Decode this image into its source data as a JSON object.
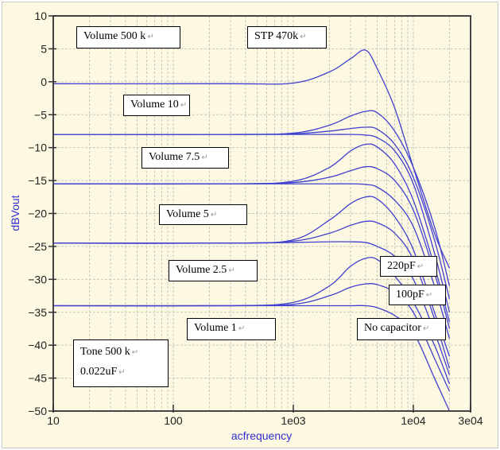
{
  "chart_data": {
    "type": "line",
    "title": "",
    "xlabel": "acfrequency",
    "ylabel": "dBVout",
    "xscale": "log",
    "xlim": [
      10,
      30000
    ],
    "ylim": [
      -50,
      10
    ],
    "grid": true,
    "xticks": [
      {
        "value": 10,
        "label": "10"
      },
      {
        "value": 100,
        "label": "100"
      },
      {
        "value": 1000,
        "label": "1e03"
      },
      {
        "value": 10000,
        "label": "1e04"
      },
      {
        "value": 30000,
        "label": "3e04"
      }
    ],
    "yticks": [
      10,
      5,
      0,
      -5,
      -10,
      -15,
      -20,
      -25,
      -30,
      -35,
      -40,
      -45,
      -50
    ],
    "x": [
      10,
      300,
      1000,
      2000,
      3000,
      4000,
      5000,
      7000,
      10000,
      15000,
      20000
    ],
    "series": [
      {
        "name": "Volume 500k STP 470k",
        "values": [
          -0.3,
          -0.3,
          -0.2,
          1.5,
          3.5,
          4.8,
          2,
          -4,
          -13,
          -23,
          -28.3
        ]
      },
      {
        "name": "Volume 10 220pF",
        "values": [
          -8,
          -8,
          -7.8,
          -6.6,
          -5.2,
          -4.5,
          -4.7,
          -7.5,
          -13,
          -22,
          -31
        ]
      },
      {
        "name": "Volume 10 100pF",
        "values": [
          -8,
          -8,
          -7.9,
          -7.5,
          -7.1,
          -6.9,
          -7.2,
          -9.5,
          -14.5,
          -24,
          -33
        ]
      },
      {
        "name": "Volume 10 No capacitor",
        "values": [
          -8,
          -8,
          -8,
          -8,
          -8,
          -8.1,
          -8.5,
          -10.5,
          -15.5,
          -26,
          -35
        ]
      },
      {
        "name": "Volume 7.5 220pF",
        "values": [
          -15.5,
          -15.5,
          -15.1,
          -13,
          -10.5,
          -9.5,
          -9.9,
          -12.5,
          -18,
          -28,
          -36.5
        ]
      },
      {
        "name": "Volume 7.5 100pF",
        "values": [
          -15.5,
          -15.5,
          -15.3,
          -14.5,
          -13.5,
          -12.9,
          -13.2,
          -15,
          -19.5,
          -29,
          -37.5
        ]
      },
      {
        "name": "Volume 7.5 No capacitor",
        "values": [
          -15.5,
          -15.5,
          -15.5,
          -15.5,
          -15.5,
          -15.6,
          -16,
          -18,
          -22,
          -31,
          -39
        ]
      },
      {
        "name": "Volume 5 220pF",
        "values": [
          -24.5,
          -24.5,
          -24,
          -21,
          -18.5,
          -17.5,
          -17.8,
          -20.5,
          -25.5,
          -35,
          -41.7
        ]
      },
      {
        "name": "Volume 5 100pF",
        "values": [
          -24.5,
          -24.5,
          -24.2,
          -23,
          -21.8,
          -21.2,
          -21.4,
          -23,
          -27,
          -36,
          -43.5
        ]
      },
      {
        "name": "Volume 5 No capacitor",
        "values": [
          -24.5,
          -24.5,
          -24.4,
          -24.3,
          -24.3,
          -24.4,
          -25,
          -26.5,
          -30,
          -38,
          -44.5
        ]
      },
      {
        "name": "Volume 2.5 220pF",
        "values": [
          -34,
          -34,
          -33.5,
          -31,
          -28,
          -26.8,
          -27,
          -29.5,
          -33.5,
          -40,
          -45.9
        ]
      },
      {
        "name": "Volume 2.5 100pF",
        "values": [
          -34,
          -34,
          -33.8,
          -32.5,
          -31.2,
          -30.7,
          -30.8,
          -32,
          -35,
          -42,
          -47
        ]
      },
      {
        "name": "Volume 2.5 No capacitor",
        "values": [
          -34,
          -34,
          -34,
          -34,
          -34,
          -34,
          -34.3,
          -35.5,
          -38,
          -45,
          -50
        ]
      }
    ],
    "line_color": "#4040d0",
    "annotations": {
      "vol500k": "Volume 500 k",
      "stp": "STP 470k",
      "vol10": "Volume 10",
      "vol75": "Volume 7.5",
      "vol5": "Volume 5",
      "vol25": "Volume 2.5",
      "vol1": "Volume 1",
      "c220": "220pF",
      "c100": "100pF",
      "nocap": "No capacitor",
      "tone": "Tone 500 k",
      "cap": "0.022uF"
    },
    "return_mark": "↵"
  }
}
